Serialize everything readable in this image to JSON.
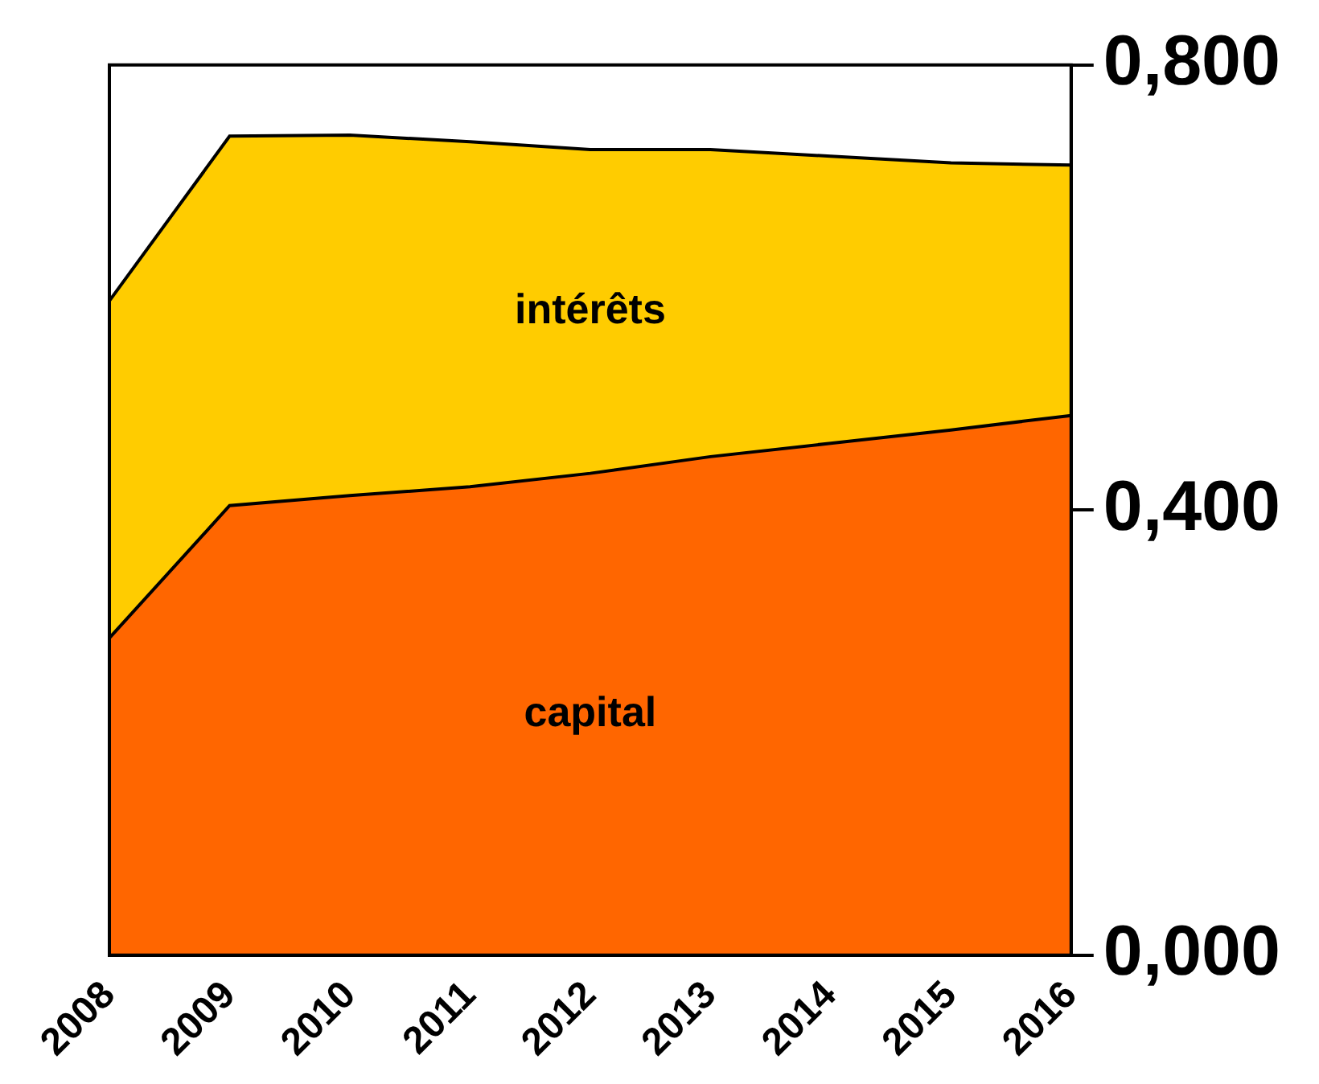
{
  "chart_data": {
    "type": "area",
    "stacked": true,
    "categories": [
      "2008",
      "2009",
      "2010",
      "2011",
      "2012",
      "2013",
      "2014",
      "2015",
      "2016"
    ],
    "series": [
      {
        "name": "capital",
        "color": "#ff6600",
        "values": [
          0.285,
          0.404,
          0.413,
          0.421,
          0.433,
          0.448,
          0.46,
          0.472,
          0.485
        ]
      },
      {
        "name": "intérêts",
        "color": "#ffcc00",
        "values": [
          0.303,
          0.332,
          0.324,
          0.31,
          0.291,
          0.276,
          0.258,
          0.24,
          0.225
        ]
      }
    ],
    "ylim": [
      0,
      0.8
    ],
    "yticks": [
      {
        "value": 0,
        "label": "0,000"
      },
      {
        "value": 0.4,
        "label": "0,400"
      },
      {
        "value": 0.8,
        "label": "0,800"
      }
    ],
    "grid": false,
    "legend": false
  }
}
